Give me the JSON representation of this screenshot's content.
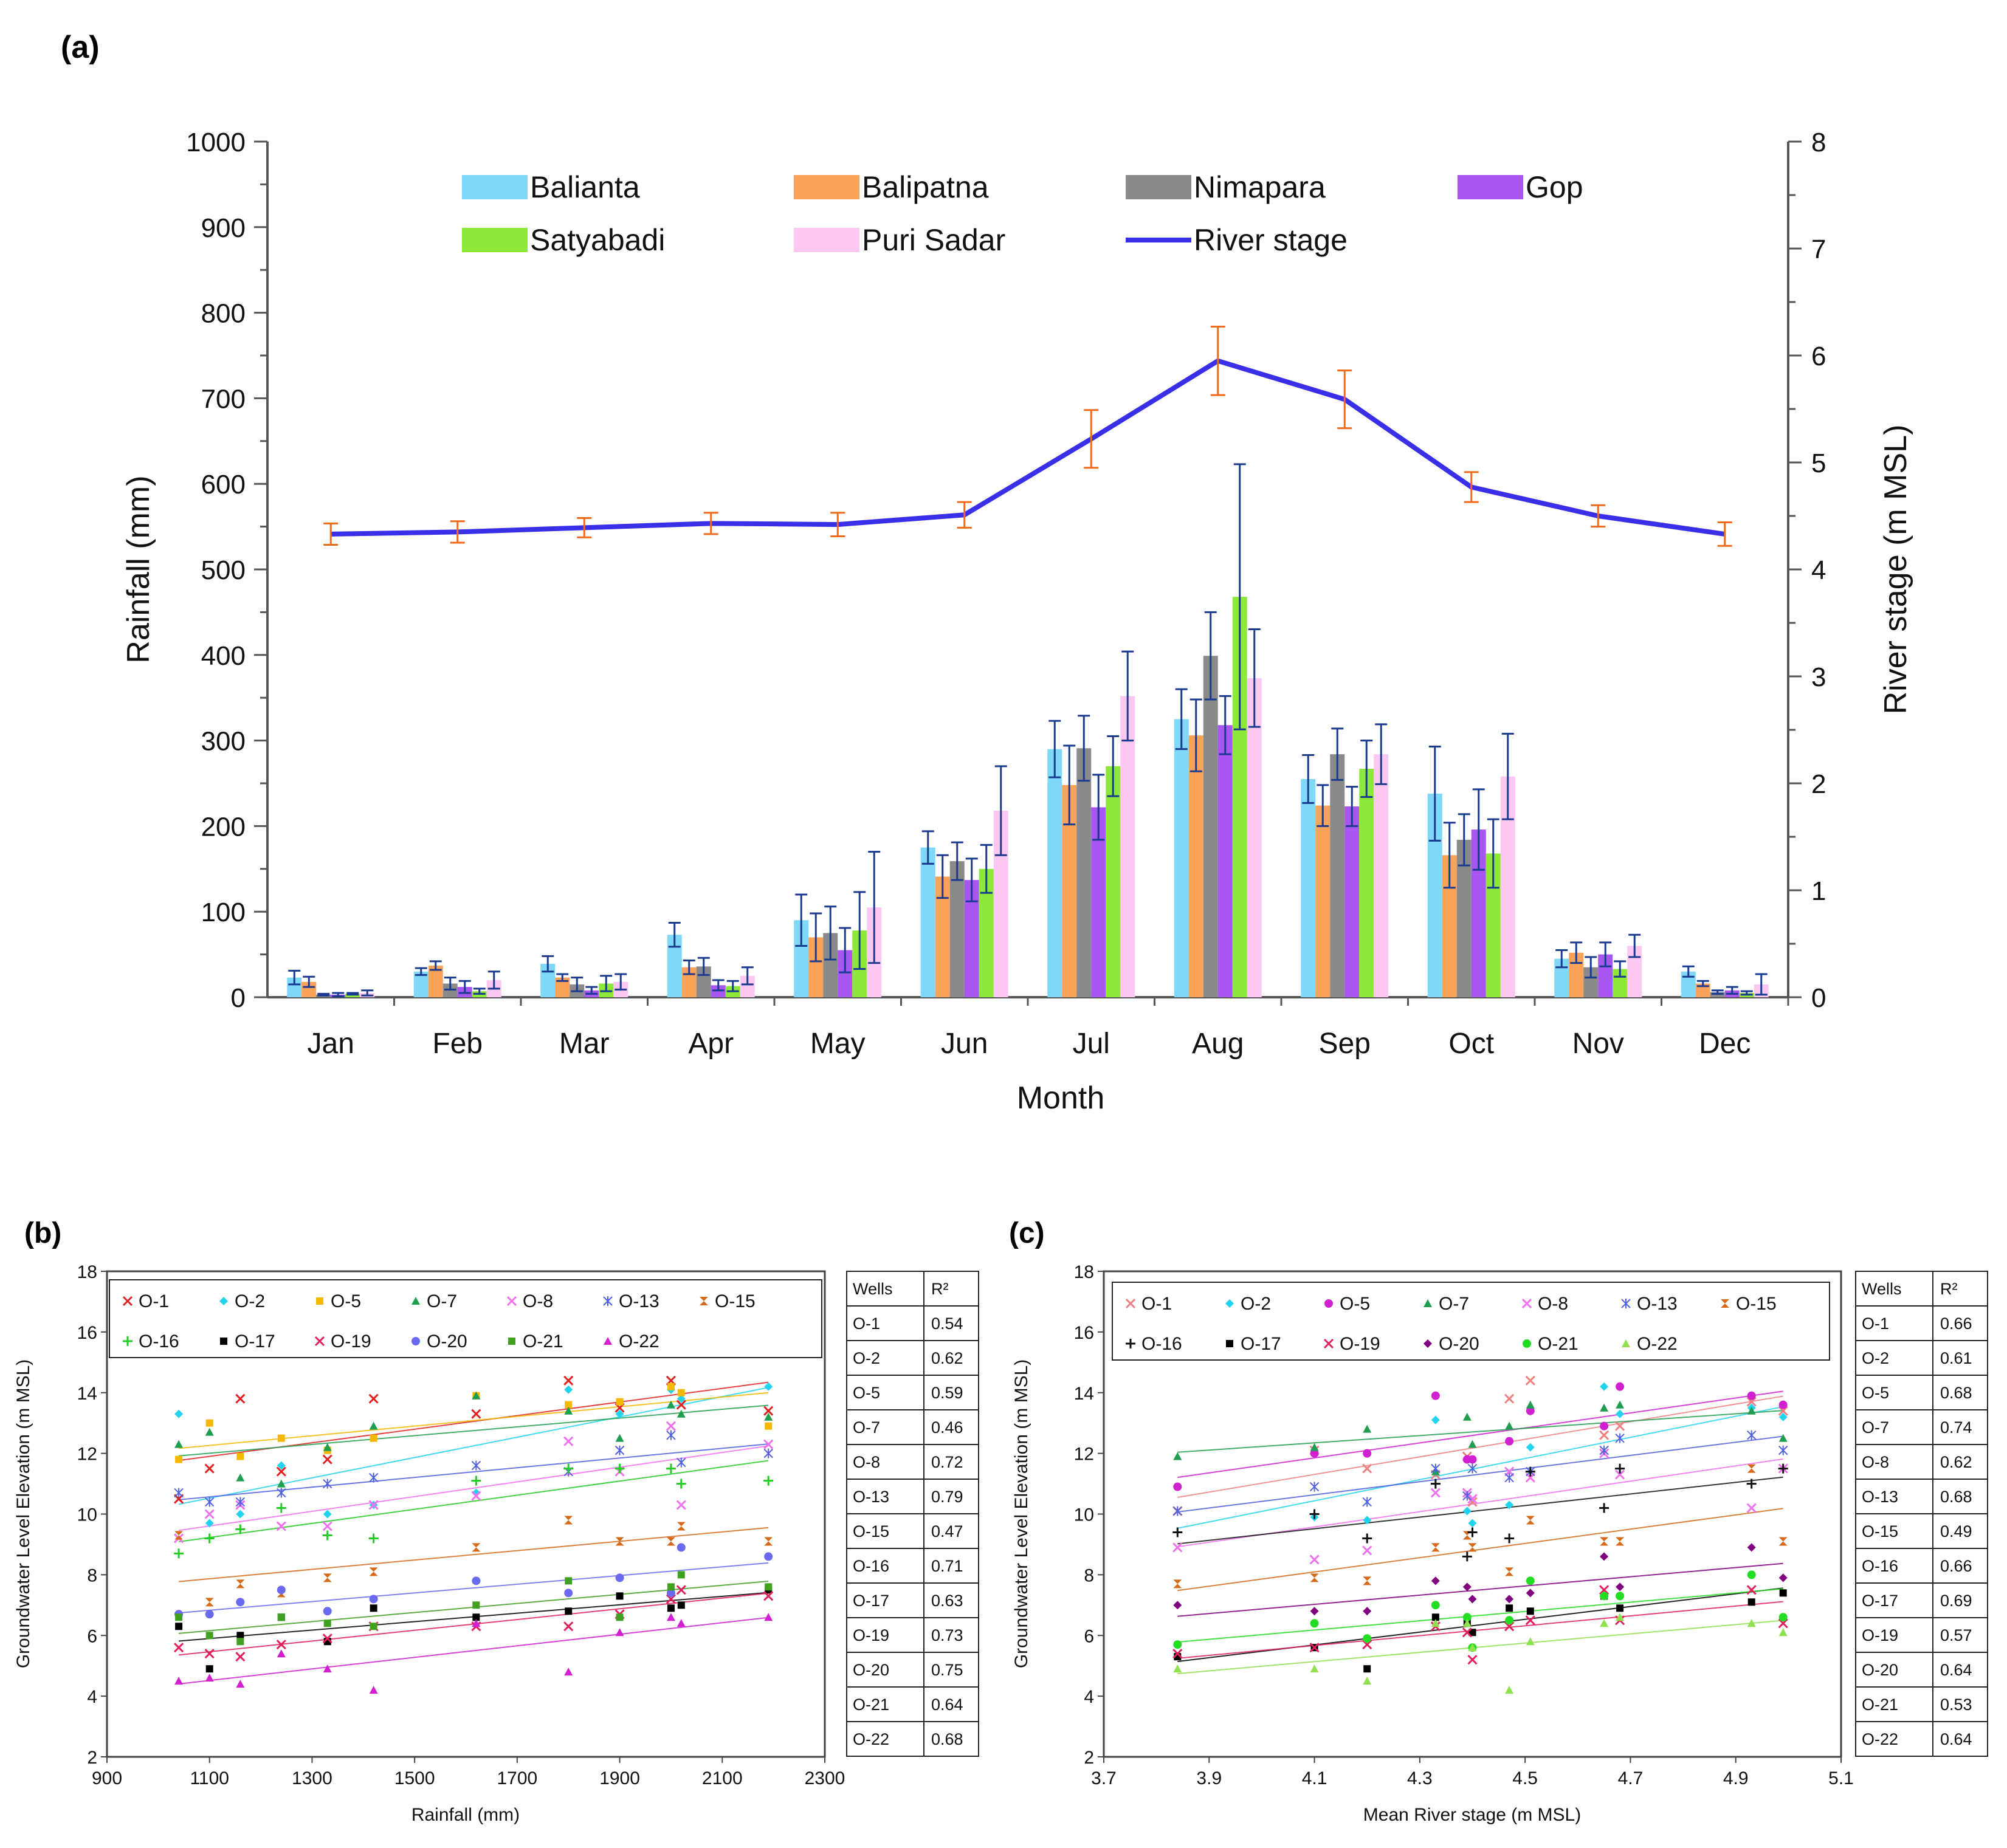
{
  "chart_data": [
    {
      "panel": "(a)",
      "type": "bar+line",
      "title": "",
      "xlabel": "Month",
      "ylabel": "Rainfall (mm)",
      "y2label": "River stage (m MSL)",
      "ylim": [
        0,
        1000
      ],
      "y2lim": [
        0,
        8
      ],
      "yticks": [
        0,
        100,
        200,
        300,
        400,
        500,
        600,
        700,
        800,
        900,
        1000
      ],
      "y2ticks": [
        0,
        1,
        2,
        3,
        4,
        5,
        6,
        7,
        8
      ],
      "categories": [
        "Jan",
        "Feb",
        "Mar",
        "Apr",
        "May",
        "Jun",
        "Jul",
        "Aug",
        "Sep",
        "Oct",
        "Nov",
        "Dec"
      ],
      "series": [
        {
          "name": "Balianta",
          "color": "#7fd8f7",
          "values": [
            23,
            30,
            39,
            73,
            90,
            175,
            290,
            325,
            255,
            238,
            45,
            30
          ],
          "errors": [
            8,
            4,
            9,
            14,
            30,
            19,
            33,
            35,
            28,
            55,
            10,
            6
          ]
        },
        {
          "name": "Balipatna",
          "color": "#f9a25a",
          "values": [
            18,
            37,
            23,
            35,
            70,
            141,
            248,
            306,
            224,
            166,
            52,
            16
          ],
          "errors": [
            6,
            5,
            4,
            8,
            28,
            25,
            46,
            42,
            24,
            38,
            12,
            3
          ]
        },
        {
          "name": "Nimapara",
          "color": "#8a8a8a",
          "values": [
            3,
            16,
            15,
            36,
            75,
            159,
            291,
            399,
            284,
            184,
            35,
            6
          ],
          "errors": [
            1,
            7,
            8,
            10,
            31,
            22,
            38,
            51,
            30,
            30,
            12,
            2
          ]
        },
        {
          "name": "Gop",
          "color": "#a856f0",
          "values": [
            3,
            12,
            8,
            14,
            55,
            137,
            222,
            318,
            223,
            196,
            50,
            8
          ],
          "errors": [
            2,
            7,
            4,
            6,
            26,
            25,
            38,
            34,
            23,
            47,
            14,
            4
          ]
        },
        {
          "name": "Satyabadi",
          "color": "#8ee83a",
          "values": [
            4,
            7,
            16,
            13,
            78,
            150,
            270,
            468,
            267,
            168,
            33,
            5
          ],
          "errors": [
            1,
            3,
            9,
            6,
            45,
            28,
            35,
            155,
            33,
            40,
            9,
            2
          ]
        },
        {
          "name": "Puri Sadar",
          "color": "#fcc8f2",
          "values": [
            5,
            20,
            18,
            25,
            105,
            218,
            352,
            373,
            284,
            258,
            60,
            15
          ],
          "errors": [
            3,
            10,
            9,
            10,
            65,
            52,
            52,
            57,
            35,
            50,
            13,
            12
          ]
        }
      ],
      "line": {
        "name": "River stage",
        "color": "#3a2fe8",
        "errbar_color": "#f06a1a",
        "values": [
          4.33,
          4.35,
          4.39,
          4.43,
          4.42,
          4.51,
          5.22,
          5.95,
          5.59,
          4.77,
          4.5,
          4.33
        ],
        "errors": [
          0.1,
          0.1,
          0.09,
          0.1,
          0.11,
          0.12,
          0.27,
          0.32,
          0.27,
          0.14,
          0.1,
          0.11
        ]
      }
    },
    {
      "panel": "(b)",
      "type": "scatter",
      "xlabel": "Rainfall (mm)",
      "ylabel": "Groundwater Level Elevation (m MSL)",
      "xlim": [
        900,
        2300
      ],
      "ylim": [
        2,
        18
      ],
      "xticks": [
        900,
        1100,
        1300,
        1500,
        1700,
        1900,
        2100,
        2300
      ],
      "yticks": [
        2,
        4,
        6,
        8,
        10,
        12,
        14,
        16,
        18
      ],
      "x": [
        1040,
        1100,
        1160,
        1240,
        1330,
        1420,
        1620,
        1800,
        1900,
        2000,
        2020,
        2190
      ],
      "series": [
        {
          "name": "O-1",
          "marker": "x",
          "color": "#e02020",
          "values": [
            10.5,
            11.5,
            13.8,
            11.4,
            11.8,
            13.8,
            13.3,
            14.4,
            13.5,
            14.4,
            13.6,
            13.4
          ]
        },
        {
          "name": "O-2",
          "marker": "diamond",
          "color": "#22d3ee",
          "values": [
            13.3,
            9.7,
            10.0,
            11.6,
            10.0,
            10.3,
            10.7,
            14.1,
            13.3,
            14.1,
            13.8,
            14.2
          ]
        },
        {
          "name": "O-5",
          "marker": "square",
          "color": "#f5b800",
          "values": [
            11.8,
            13.0,
            11.9,
            12.5,
            12.1,
            12.5,
            13.9,
            13.6,
            13.7,
            14.2,
            14.0,
            12.9
          ]
        },
        {
          "name": "O-7",
          "marker": "triangle",
          "color": "#1f9e50",
          "values": [
            12.3,
            12.7,
            11.2,
            11.0,
            12.2,
            12.9,
            13.9,
            13.4,
            12.5,
            13.6,
            13.3,
            13.2
          ]
        },
        {
          "name": "O-8",
          "marker": "x",
          "color": "#f070f0",
          "values": [
            9.2,
            10.0,
            10.3,
            9.6,
            9.6,
            10.3,
            10.6,
            12.4,
            11.4,
            12.9,
            10.3,
            12.3
          ]
        },
        {
          "name": "O-13",
          "marker": "asterisk",
          "color": "#5060e0",
          "values": [
            10.7,
            10.4,
            10.4,
            10.7,
            11.0,
            11.2,
            11.6,
            11.4,
            12.1,
            12.6,
            11.7,
            12.0
          ]
        },
        {
          "name": "O-15",
          "marker": "bowtie",
          "color": "#d46a1a",
          "values": [
            9.3,
            7.1,
            7.7,
            7.4,
            7.9,
            8.1,
            8.9,
            9.8,
            9.1,
            9.1,
            9.6,
            9.1
          ]
        },
        {
          "name": "O-16",
          "marker": "plus",
          "color": "#22cc22",
          "values": [
            8.7,
            9.2,
            9.5,
            10.2,
            9.3,
            9.2,
            11.1,
            11.5,
            11.5,
            11.5,
            11.0,
            11.1
          ]
        },
        {
          "name": "O-17",
          "marker": "square",
          "color": "#000000",
          "values": [
            6.3,
            4.9,
            6.0,
            6.6,
            5.8,
            6.9,
            6.6,
            6.8,
            7.3,
            6.9,
            7.0,
            7.5
          ]
        },
        {
          "name": "O-19",
          "marker": "x",
          "color": "#e0205a",
          "values": [
            5.6,
            5.4,
            5.3,
            5.7,
            5.9,
            6.3,
            6.3,
            6.3,
            6.7,
            7.2,
            7.5,
            7.3
          ]
        },
        {
          "name": "O-20",
          "marker": "circle",
          "color": "#6a6af0",
          "values": [
            6.7,
            6.7,
            7.1,
            7.5,
            6.8,
            7.2,
            7.8,
            7.4,
            7.9,
            7.4,
            8.9,
            8.6
          ]
        },
        {
          "name": "O-21",
          "marker": "square",
          "color": "#40a020",
          "values": [
            6.6,
            6.0,
            5.8,
            6.6,
            6.4,
            6.3,
            7.0,
            7.8,
            6.6,
            7.6,
            8.0,
            7.6
          ]
        },
        {
          "name": "O-22",
          "marker": "triangle",
          "color": "#d020d0",
          "values": [
            4.5,
            4.6,
            4.4,
            5.4,
            4.9,
            4.2,
            6.4,
            4.8,
            6.1,
            6.6,
            6.4,
            6.6
          ]
        }
      ],
      "table": {
        "header": [
          "Wells",
          "R²"
        ],
        "rows": [
          [
            "O-1",
            "0.54"
          ],
          [
            "O-2",
            "0.62"
          ],
          [
            "O-5",
            "0.59"
          ],
          [
            "O-7",
            "0.46"
          ],
          [
            "O-8",
            "0.72"
          ],
          [
            "O-13",
            "0.79"
          ],
          [
            "O-15",
            "0.47"
          ],
          [
            "O-16",
            "0.71"
          ],
          [
            "O-17",
            "0.63"
          ],
          [
            "O-19",
            "0.73"
          ],
          [
            "O-20",
            "0.75"
          ],
          [
            "O-21",
            "0.64"
          ],
          [
            "O-22",
            "0.68"
          ]
        ]
      }
    },
    {
      "panel": "(c)",
      "type": "scatter",
      "xlabel": "Mean River stage (m MSL)",
      "ylabel": "Groundwater Level Elevation (m MSL)",
      "xlim": [
        3.7,
        5.1
      ],
      "ylim": [
        2,
        18
      ],
      "xticks": [
        "3.7",
        "3.9",
        "4.1",
        "4.3",
        "4.5",
        "4.7",
        "4.9",
        "5.1"
      ],
      "yticks": [
        2,
        4,
        6,
        8,
        10,
        12,
        14,
        16,
        18
      ],
      "x": [
        3.84,
        4.1,
        4.2,
        4.33,
        4.39,
        4.4,
        4.47,
        4.51,
        4.65,
        4.68,
        4.93,
        4.99
      ],
      "series": [
        {
          "name": "O-1",
          "marker": "x",
          "color": "#f08080",
          "values": [
            10.1,
            12.1,
            11.5,
            11.3,
            11.9,
            10.4,
            13.8,
            14.4,
            12.6,
            12.9,
            13.7,
            13.4
          ]
        },
        {
          "name": "O-2",
          "marker": "diamond",
          "color": "#22d3ee",
          "values": [
            10.9,
            9.9,
            9.8,
            13.1,
            10.1,
            9.7,
            10.3,
            12.2,
            14.2,
            13.3,
            13.5,
            13.2
          ]
        },
        {
          "name": "O-5",
          "marker": "circle",
          "color": "#d020d0",
          "values": [
            10.9,
            12.0,
            12.0,
            13.9,
            11.8,
            11.8,
            12.4,
            13.4,
            12.9,
            14.2,
            13.9,
            13.6
          ]
        },
        {
          "name": "O-7",
          "marker": "triangle",
          "color": "#1f9e50",
          "values": [
            11.9,
            12.2,
            12.8,
            11.4,
            13.2,
            12.3,
            12.9,
            13.6,
            13.5,
            13.6,
            13.4,
            12.5
          ]
        },
        {
          "name": "O-8",
          "marker": "x",
          "color": "#f070f0",
          "values": [
            8.9,
            8.5,
            8.8,
            10.7,
            10.7,
            10.5,
            11.4,
            11.2,
            12.0,
            11.3,
            10.2,
            11.5
          ]
        },
        {
          "name": "O-13",
          "marker": "asterisk",
          "color": "#5060e0",
          "values": [
            10.1,
            10.9,
            10.4,
            11.5,
            10.6,
            11.5,
            11.2,
            11.4,
            12.1,
            12.5,
            12.6,
            12.1
          ]
        },
        {
          "name": "O-15",
          "marker": "bowtie",
          "color": "#d46a1a",
          "values": [
            7.7,
            7.9,
            7.8,
            8.9,
            9.3,
            8.9,
            8.1,
            9.8,
            9.1,
            9.1,
            11.5,
            9.1
          ]
        },
        {
          "name": "O-16",
          "marker": "plus",
          "color": "#111111",
          "values": [
            9.4,
            10.0,
            9.2,
            11.0,
            8.6,
            9.4,
            9.2,
            11.4,
            10.2,
            11.5,
            11.0,
            11.5
          ]
        },
        {
          "name": "O-17",
          "marker": "square",
          "color": "#000000",
          "values": [
            5.3,
            5.6,
            4.9,
            6.6,
            6.4,
            6.1,
            6.9,
            6.8,
            7.3,
            6.9,
            7.1,
            7.4
          ]
        },
        {
          "name": "O-19",
          "marker": "x",
          "color": "#e0205a",
          "values": [
            5.4,
            5.6,
            5.7,
            6.3,
            6.1,
            5.2,
            6.3,
            6.5,
            7.5,
            6.5,
            7.5,
            6.4
          ]
        },
        {
          "name": "O-20",
          "marker": "diamond",
          "color": "#800080",
          "values": [
            7.0,
            6.8,
            6.8,
            7.8,
            7.6,
            7.2,
            7.2,
            7.4,
            8.6,
            7.6,
            8.9,
            7.9
          ]
        },
        {
          "name": "O-21",
          "marker": "circle",
          "color": "#22dd22",
          "values": [
            5.7,
            6.4,
            5.9,
            7.0,
            6.6,
            5.6,
            6.5,
            7.8,
            7.3,
            7.3,
            8.0,
            6.6
          ]
        },
        {
          "name": "O-22",
          "marker": "triangle",
          "color": "#90e050",
          "values": [
            4.9,
            4.9,
            4.5,
            6.4,
            6.4,
            5.6,
            4.2,
            5.8,
            6.4,
            6.6,
            6.4,
            6.1
          ]
        }
      ],
      "table": {
        "header": [
          "Wells",
          "R²"
        ],
        "rows": [
          [
            "O-1",
            "0.66"
          ],
          [
            "O-2",
            "0.61"
          ],
          [
            "O-5",
            "0.68"
          ],
          [
            "O-7",
            "0.74"
          ],
          [
            "O-8",
            "0.62"
          ],
          [
            "O-13",
            "0.68"
          ],
          [
            "O-15",
            "0.49"
          ],
          [
            "O-16",
            "0.66"
          ],
          [
            "O-17",
            "0.69"
          ],
          [
            "O-19",
            "0.57"
          ],
          [
            "O-20",
            "0.64"
          ],
          [
            "O-21",
            "0.53"
          ],
          [
            "O-22",
            "0.64"
          ]
        ]
      }
    }
  ]
}
